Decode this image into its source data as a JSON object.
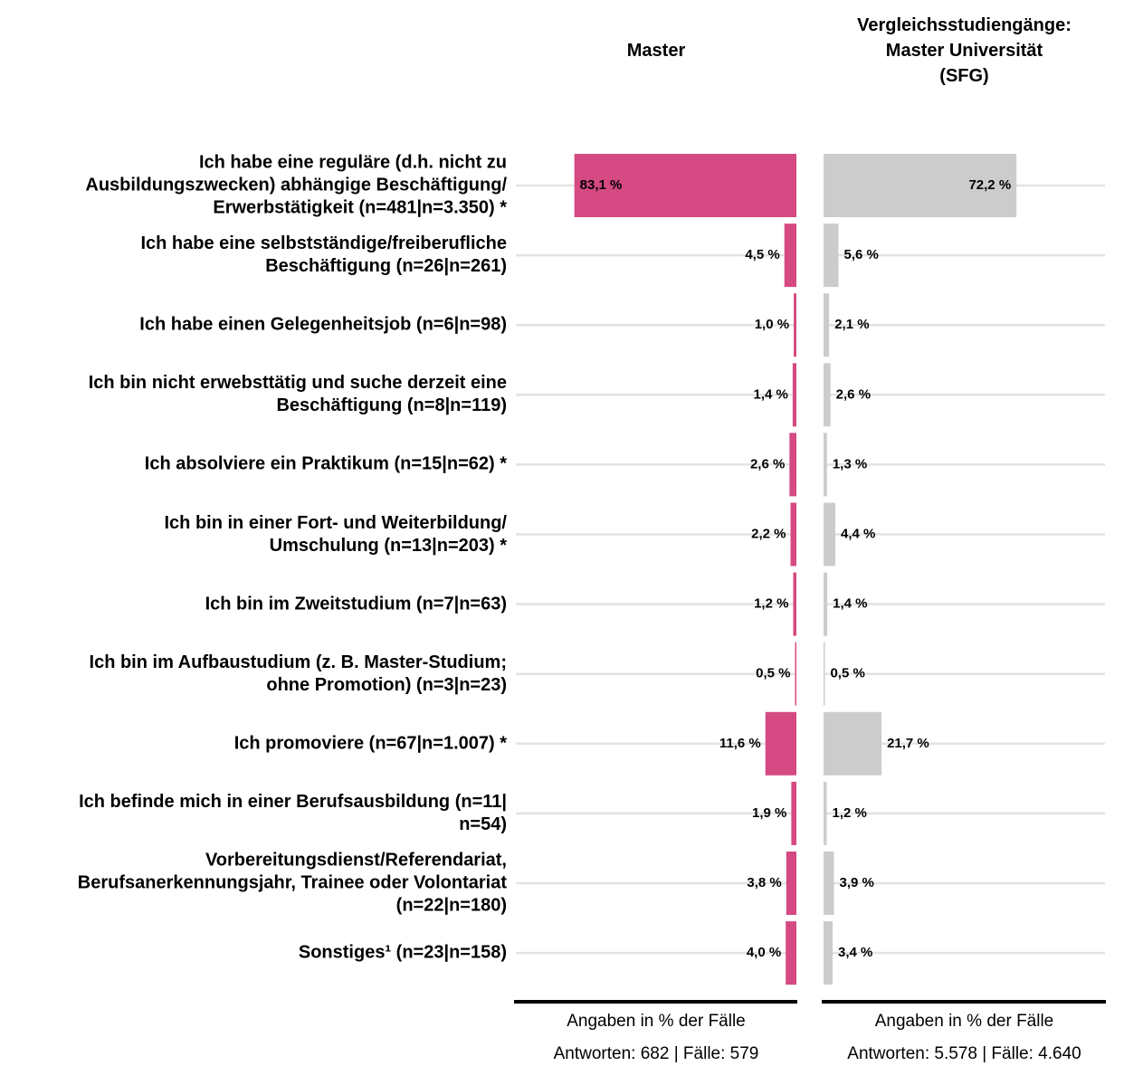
{
  "chart_data": {
    "type": "bar",
    "orientation": "horizontal",
    "categories": [
      "Ich habe eine reguläre (d.h. nicht zu\nAusbildungszwecken) abhängige Beschäftigung/\nErwerbstätigkeit (n=481|n=3.350) *",
      "Ich habe eine selbstständige/freiberufliche\nBeschäftigung (n=26|n=261)",
      "Ich habe einen Gelegenheitsjob (n=6|n=98)",
      "Ich bin nicht erwebsttätig und suche derzeit eine\nBeschäftigung (n=8|n=119)",
      "Ich absolviere ein Praktikum (n=15|n=62) *",
      "Ich bin in einer Fort- und Weiterbildung/\nUmschulung (n=13|n=203) *",
      "Ich bin im Zweitstudium (n=7|n=63)",
      "Ich bin im Aufbaustudium (z. B. Master-Studium;\nohne Promotion) (n=3|n=23)",
      "Ich promoviere (n=67|n=1.007) *",
      "Ich befinde mich in einer Berufsausbildung (n=11|\nn=54)",
      "Vorbereitungsdienst/Referendariat,\nBerufsanerkennungsjahr, Trainee oder Volontariat\n(n=22|n=180)",
      "Sonstiges¹ (n=23|n=158)"
    ],
    "series": [
      {
        "name": "Master",
        "color": "#d54a82",
        "values": [
          83.1,
          4.5,
          1.0,
          1.4,
          2.6,
          2.2,
          1.2,
          0.5,
          11.6,
          1.9,
          3.8,
          4.0
        ],
        "value_labels": [
          "83,1 %",
          "4,5 %",
          "1,0 %",
          "1,4 %",
          "2,6 %",
          "2,2 %",
          "1,2 %",
          "0,5 %",
          "11,6 %",
          "1,9 %",
          "3,8 %",
          "4,0 %"
        ],
        "axis_label": "Angaben in % der Fälle",
        "footnote": "Antworten: 682 | Fälle: 579"
      },
      {
        "name": "Vergleichsstudiengänge:\nMaster Universität\n(SFG)",
        "color": "#cccccc",
        "values": [
          72.2,
          5.6,
          2.1,
          2.6,
          1.3,
          4.4,
          1.4,
          0.5,
          21.7,
          1.2,
          3.9,
          3.4
        ],
        "value_labels": [
          "72,2 %",
          "5,6 %",
          "2,1 %",
          "2,6 %",
          "1,3 %",
          "4,4 %",
          "1,4 %",
          "0,5 %",
          "21,7 %",
          "1,2 %",
          "3,9 %",
          "3,4 %"
        ],
        "axis_label": "Angaben in % der Fälle",
        "footnote": "Antworten: 5.578 | Fälle: 4.640"
      }
    ],
    "xlim": [
      0,
      105
    ]
  }
}
